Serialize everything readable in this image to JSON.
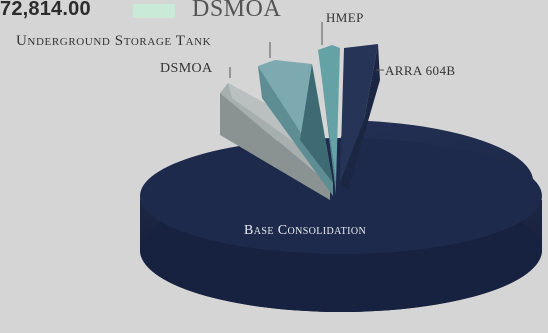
{
  "header": {
    "amount": "72,814.00",
    "legend_label": "DSMOA",
    "legend_color": "#c8ead6"
  },
  "chart_data": {
    "type": "pie",
    "title": "",
    "slices": [
      {
        "label": "Base Consolidation",
        "value": 81,
        "color": "#1e2a48"
      },
      {
        "label": "DSMOA",
        "value": 4,
        "color": "#a9b2b0"
      },
      {
        "label": "Underground Storage Tank",
        "value": 6,
        "color": "#6f9fa6"
      },
      {
        "label": "HMEP",
        "value": 3,
        "color": "#5f9ea2"
      },
      {
        "label": "ARRA 604B",
        "value": 6,
        "color": "#273457"
      }
    ]
  }
}
